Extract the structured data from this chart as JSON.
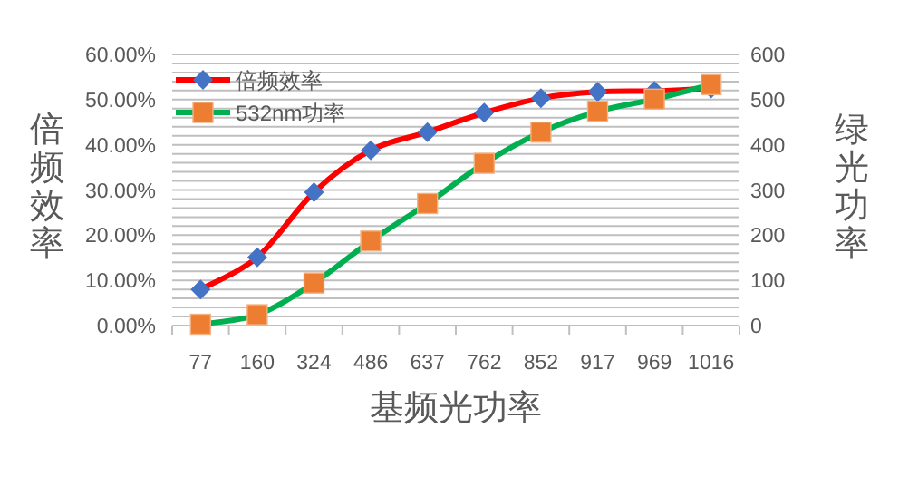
{
  "chart_data": {
    "type": "line",
    "xlabel": "基频光功率",
    "ylabel": "倍频效率",
    "y2label": "绿光功率",
    "categories": [
      "77",
      "160",
      "324",
      "486",
      "637",
      "762",
      "852",
      "917",
      "969",
      "1016"
    ],
    "series": [
      {
        "name": "倍频效率",
        "color": "#ff0000",
        "colors": [
          "#4472c4",
          "#4472c4",
          "#4472c4",
          "#4472c4",
          "#4472c4",
          "#4472c4",
          "#4472c4",
          "#4472c4",
          "#4472c4",
          "#4472c4"
        ],
        "marker": "diamond",
        "values": [
          8.0,
          15.1,
          29.5,
          38.8,
          42.8,
          47.1,
          50.3,
          51.7,
          51.9,
          52.5
        ]
      },
      {
        "name": "532nm功率",
        "axis": "y2",
        "color": "#00b050",
        "colors": [
          "#ed7d31",
          "#ed7d31",
          "#ed7d31",
          "#ed7d31",
          "#ed7d31",
          "#ed7d31",
          "#ed7d31",
          "#ed7d31",
          "#ed7d31",
          "#ed7d31"
        ],
        "marker": "square",
        "values": [
          3,
          24,
          94,
          187,
          270,
          359,
          428,
          474,
          501,
          533
        ]
      }
    ],
    "ylim": [
      0,
      60
    ],
    "yticks": [
      {
        "value": 0,
        "label": "0.00%"
      },
      {
        "value": 2,
        "label": null
      },
      {
        "value": 4,
        "label": null
      },
      {
        "value": 6,
        "label": null
      },
      {
        "value": 8,
        "label": null
      },
      {
        "value": 10,
        "label": "10.00%"
      },
      {
        "value": 12,
        "label": null
      },
      {
        "value": 14,
        "label": null
      },
      {
        "value": 16,
        "label": null
      },
      {
        "value": 18,
        "label": null
      },
      {
        "value": 20,
        "label": "20.00%"
      },
      {
        "value": 22,
        "label": null
      },
      {
        "value": 24,
        "label": null
      },
      {
        "value": 26,
        "label": null
      },
      {
        "value": 28,
        "label": null
      },
      {
        "value": 30,
        "label": "30.00%"
      },
      {
        "value": 32,
        "label": null
      },
      {
        "value": 34,
        "label": null
      },
      {
        "value": 36,
        "label": null
      },
      {
        "value": 38,
        "label": null
      },
      {
        "value": 40,
        "label": "40.00%"
      },
      {
        "value": 42,
        "label": null
      },
      {
        "value": 44,
        "label": null
      },
      {
        "value": 46,
        "label": null
      },
      {
        "value": 48,
        "label": null
      },
      {
        "value": 50,
        "label": "50.00%"
      },
      {
        "value": 52,
        "label": null
      },
      {
        "value": 54,
        "label": null
      },
      {
        "value": 56,
        "label": null
      },
      {
        "value": 58,
        "label": null
      },
      {
        "value": 60,
        "label": "60.00%"
      }
    ],
    "y2lim": [
      0,
      600
    ],
    "y2ticks": [
      0,
      100,
      200,
      300,
      400,
      500,
      600
    ],
    "grid": "y",
    "legend": "top left",
    "line_style": "solid"
  }
}
